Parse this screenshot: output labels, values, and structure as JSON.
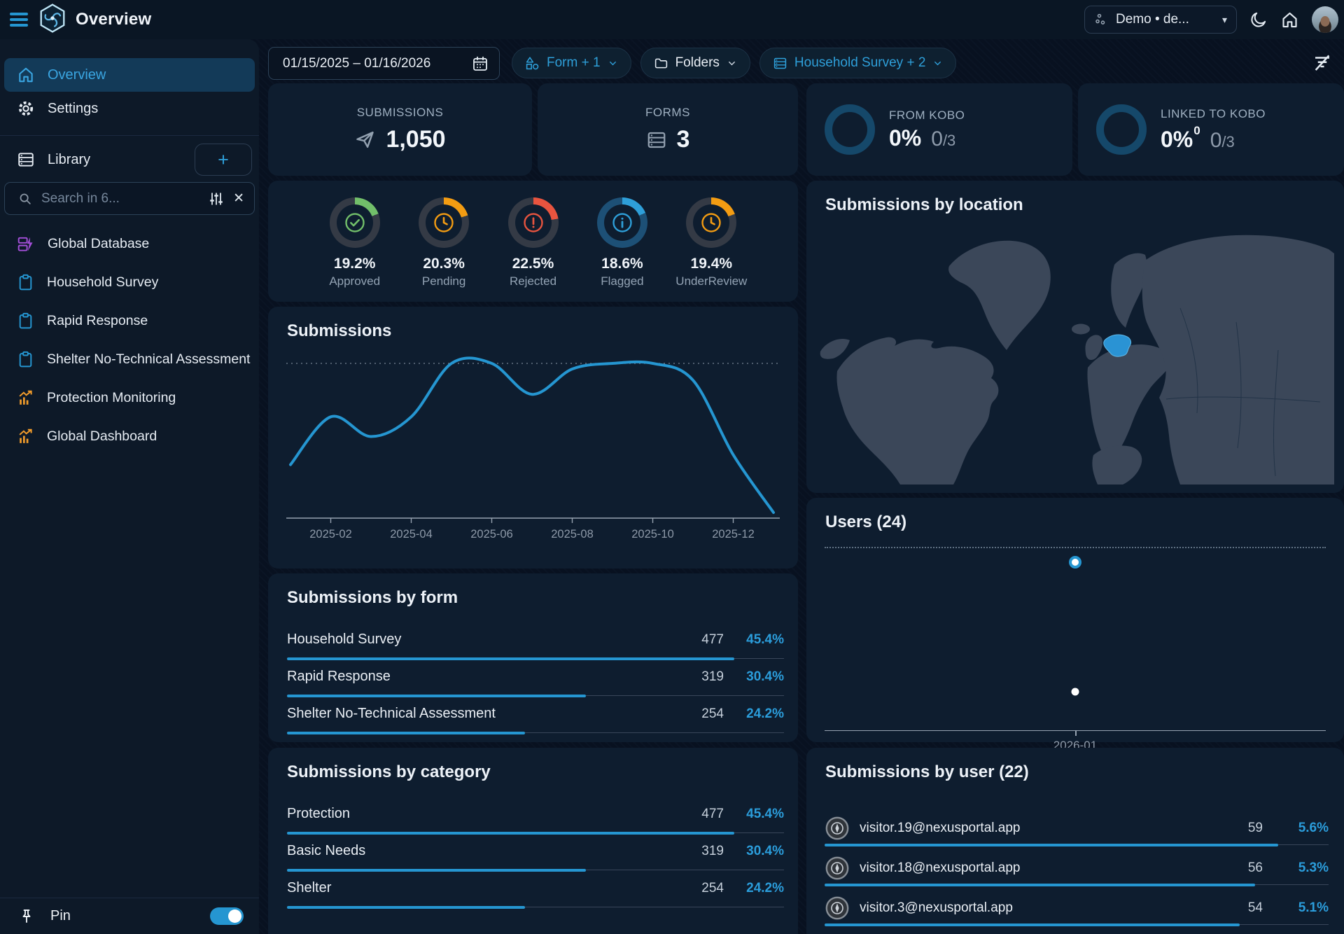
{
  "colors": {
    "accent_blue": "#2596d1",
    "green": "#72bf6a",
    "orange": "#f39c12",
    "red": "#e8543f",
    "info_blue": "#2e9fd9",
    "purple": "#a44fd9",
    "map_land": "#3b4759",
    "map_highlight": "#2a93d4",
    "card_bg": "#0e1d2f"
  },
  "icons": {
    "menu-icon": "three-bars",
    "app-logo": "hexagon-swirl",
    "workspace-icon": "org-dots",
    "caret-down": "▾",
    "dark-mode-icon": "crescent-moon",
    "home-icon": "house",
    "calendar-icon": "calendar-grid",
    "shapes-icon": "triangle-square-circle",
    "folder-icon": "folder",
    "form-icon": "list-box",
    "filter-clear-icon": "filter-lines-slash",
    "send-icon": "paper-plane",
    "forms-icon": "list-box",
    "search-icon": "magnifier",
    "sliders-icon": "vertical-sliders",
    "close-icon": "✕",
    "plus-icon": "+",
    "database-icon": "stacked-db-bolt",
    "clipboard-icon": "clipboard",
    "dashboard-icon": "bar-chart-trend",
    "pin-icon": "pushpin",
    "compass-icon": "compass",
    "check-circle-icon": "circled-check",
    "clock-icon": "circled-clock",
    "alert-circle-icon": "circled-exclamation",
    "info-circle-icon": "circled-i"
  },
  "header": {
    "title": "Overview",
    "workspace": "Demo • de..."
  },
  "filters": {
    "date_range": "01/15/2025 – 01/16/2026",
    "form": "Form + 1",
    "folders": "Folders",
    "survey": "Household Survey + 2"
  },
  "sidebar": {
    "nav": [
      {
        "label": "Overview",
        "active": true
      },
      {
        "label": "Settings",
        "active": false
      }
    ],
    "library": {
      "label": "Library",
      "search_placeholder": "Search in 6...",
      "items": [
        {
          "label": "Global Database",
          "type": "database"
        },
        {
          "label": "Household Survey",
          "type": "form"
        },
        {
          "label": "Rapid Response",
          "type": "form"
        },
        {
          "label": "Shelter No-Technical Assessment",
          "type": "form"
        },
        {
          "label": "Protection Monitoring",
          "type": "dashboard"
        },
        {
          "label": "Global Dashboard",
          "type": "dashboard"
        }
      ]
    },
    "pin_label": "Pin",
    "pin_enabled": true
  },
  "kpis": {
    "submissions": {
      "label": "SUBMISSIONS",
      "value": "1,050"
    },
    "forms": {
      "label": "FORMS",
      "value": "3"
    },
    "from_kobo": {
      "label": "FROM KOBO",
      "percent": "0%",
      "frac_num": "0",
      "frac_den": "/3"
    },
    "linked": {
      "label": "LINKED TO KOBO",
      "percent": "0%",
      "sup": "0",
      "frac_num": "0",
      "frac_den": "/3"
    }
  },
  "status_breakdown": [
    {
      "label": "Approved",
      "percent_text": "19.2%",
      "value": 19.2,
      "color": "#72bf6a",
      "track": "#343a45"
    },
    {
      "label": "Pending",
      "percent_text": "20.3%",
      "value": 20.3,
      "color": "#f39c12",
      "track": "#343a45"
    },
    {
      "label": "Rejected",
      "percent_text": "22.5%",
      "value": 22.5,
      "color": "#e8543f",
      "track": "#343a45"
    },
    {
      "label": "Flagged",
      "percent_text": "18.6%",
      "value": 18.6,
      "color": "#2e9fd9",
      "track": "#1d5076"
    },
    {
      "label": "UnderReview",
      "percent_text": "19.4%",
      "value": 19.4,
      "color": "#f39c12",
      "track": "#343a45"
    }
  ],
  "chart_data": [
    {
      "id": "submissions_over_time",
      "type": "line",
      "title": "Submissions",
      "x": [
        "2025-01",
        "2025-02",
        "2025-03",
        "2025-04",
        "2025-05",
        "2025-06",
        "2025-07",
        "2025-08",
        "2025-09",
        "2025-10",
        "2025-11",
        "2025-12",
        "2026-01"
      ],
      "values": [
        38,
        72,
        58,
        72,
        110,
        110,
        88,
        106,
        110,
        110,
        98,
        45,
        4
      ],
      "x_ticks": [
        "2025-02",
        "2025-04",
        "2025-06",
        "2025-08",
        "2025-10",
        "2025-12"
      ],
      "ylim": [
        0,
        115
      ],
      "max_gridline": 110,
      "grid": "top-dotted-only",
      "legend": "none",
      "color": "#2596d1"
    },
    {
      "id": "users_over_time",
      "type": "scatter",
      "title": "Users (24)",
      "points": [
        {
          "x": "2026-01",
          "y": 22
        },
        {
          "x": "2026-01",
          "y": 5
        }
      ],
      "x_ticks": [
        "2026-01"
      ],
      "ylim": [
        0,
        24
      ],
      "grid": "top-dotted-only",
      "color": "#ffffff"
    }
  ],
  "sections": {
    "submissions_chart": {
      "title": "Submissions"
    },
    "by_form": {
      "title": "Submissions by form",
      "max": 477,
      "rows": [
        {
          "name": "Household Survey",
          "value": "477",
          "percent": "45.4%",
          "fill_pct": 90
        },
        {
          "name": "Rapid Response",
          "value": "319",
          "percent": "30.4%",
          "fill_pct": 60.2
        },
        {
          "name": "Shelter No-Technical Assessment",
          "value": "254",
          "percent": "24.2%",
          "fill_pct": 47.9
        }
      ]
    },
    "by_category": {
      "title": "Submissions by category",
      "max": 477,
      "rows": [
        {
          "name": "Protection",
          "value": "477",
          "percent": "45.4%",
          "fill_pct": 90
        },
        {
          "name": "Basic Needs",
          "value": "319",
          "percent": "30.4%",
          "fill_pct": 60.2
        },
        {
          "name": "Shelter",
          "value": "254",
          "percent": "24.2%",
          "fill_pct": 47.9
        }
      ]
    },
    "by_location": {
      "title": "Submissions by location",
      "highlighted_country": "Ukraine"
    },
    "users_chart": {
      "title": "Users (24)"
    },
    "by_user": {
      "title": "Submissions by user (22)",
      "max": 59,
      "rows": [
        {
          "name": "visitor.19@nexusportal.app",
          "value": "59",
          "percent": "5.6%",
          "fill_pct": 90
        },
        {
          "name": "visitor.18@nexusportal.app",
          "value": "56",
          "percent": "5.3%",
          "fill_pct": 85.4
        },
        {
          "name": "visitor.3@nexusportal.app",
          "value": "54",
          "percent": "5.1%",
          "fill_pct": 82.4
        }
      ]
    }
  }
}
